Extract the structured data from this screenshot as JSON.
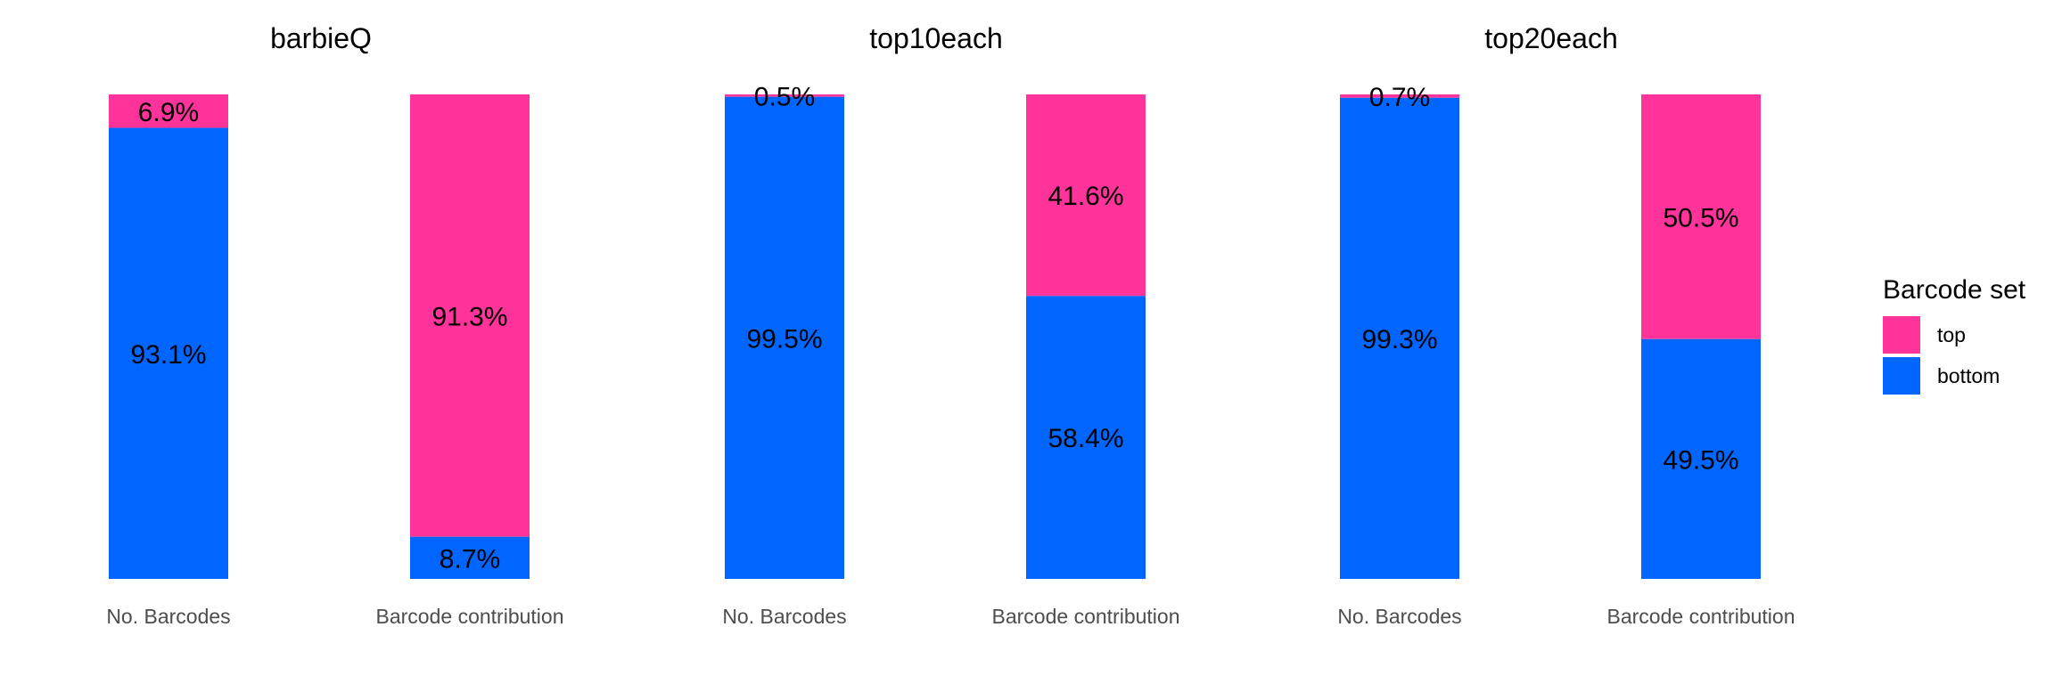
{
  "chart_data": {
    "type": "bar",
    "stacked": true,
    "percent": true,
    "categories": [
      "No. Barcodes",
      "Barcode contribution"
    ],
    "panels": [
      {
        "title": "barbieQ",
        "series": [
          {
            "name": "top",
            "values": [
              6.9,
              91.3
            ],
            "labels": [
              "6.9%",
              "91.3%"
            ]
          },
          {
            "name": "bottom",
            "values": [
              93.1,
              8.7
            ],
            "labels": [
              "93.1%",
              "8.7%"
            ]
          }
        ]
      },
      {
        "title": "top10each",
        "series": [
          {
            "name": "top",
            "values": [
              0.5,
              41.6
            ],
            "labels": [
              "0.5%",
              "41.6%"
            ]
          },
          {
            "name": "bottom",
            "values": [
              99.5,
              58.4
            ],
            "labels": [
              "99.5%",
              "58.4%"
            ]
          }
        ]
      },
      {
        "title": "top20each",
        "series": [
          {
            "name": "top",
            "values": [
              0.7,
              50.5
            ],
            "labels": [
              "0.7%",
              "50.5%"
            ]
          },
          {
            "name": "bottom",
            "values": [
              99.3,
              49.5
            ],
            "labels": [
              "99.3%",
              "49.5%"
            ]
          }
        ]
      }
    ],
    "ylim": [
      0,
      100
    ],
    "grid": false,
    "legend": {
      "title": "Barcode set",
      "placement": "right",
      "entries": [
        {
          "name": "top",
          "color": "#FF3399"
        },
        {
          "name": "bottom",
          "color": "#0066FF"
        }
      ]
    },
    "colors": {
      "top": "#FF3399",
      "bottom": "#0066FF"
    }
  }
}
